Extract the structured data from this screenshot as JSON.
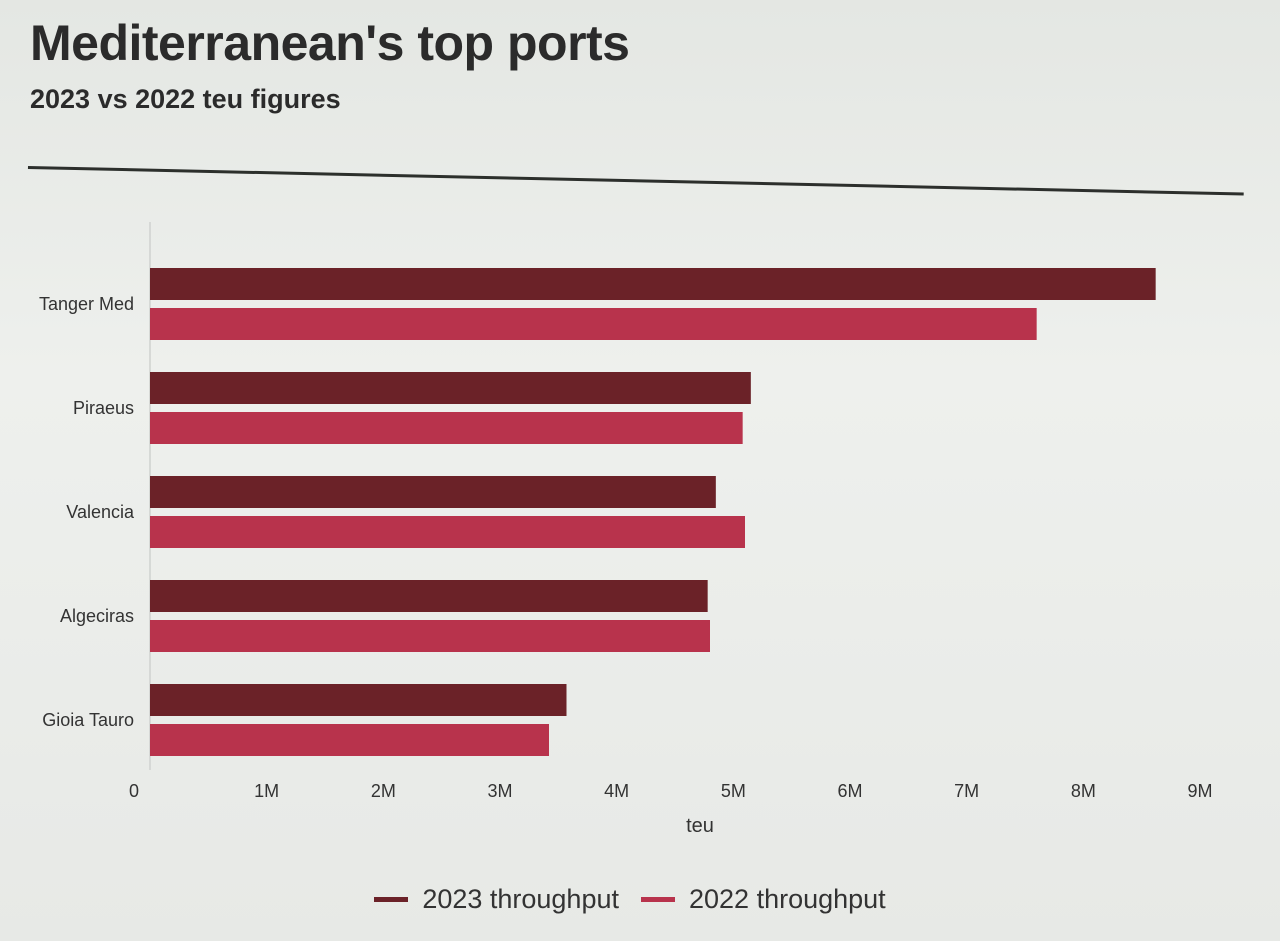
{
  "header": {
    "title": "Mediterranean's top ports",
    "subtitle": "2023 vs 2022 teu figures"
  },
  "colors": {
    "series_2023": "#6b2228",
    "series_2022": "#b8334c",
    "axis": "#cfd2cf",
    "text": "#333333"
  },
  "legend": {
    "placement": "bottom-center",
    "items": [
      {
        "label": "2023 throughput",
        "color": "#6b2228"
      },
      {
        "label": "2022 throughput",
        "color": "#b8334c"
      }
    ]
  },
  "chart_data": {
    "type": "bar",
    "orientation": "horizontal",
    "title": "Mediterranean's top ports",
    "subtitle": "2023 vs 2022 teu figures",
    "categories": [
      "Tanger Med",
      "Piraeus",
      "Valencia",
      "Algeciras",
      "Gioia Tauro"
    ],
    "series": [
      {
        "name": "2023 throughput",
        "values": [
          8.62,
          5.15,
          4.85,
          4.78,
          3.57
        ]
      },
      {
        "name": "2022 throughput",
        "values": [
          7.6,
          5.08,
          5.1,
          4.8,
          3.42
        ]
      }
    ],
    "xlabel": "teu",
    "ylabel": "",
    "xlim": [
      0,
      9
    ],
    "ticks": [
      "0",
      "1M",
      "2M",
      "3M",
      "4M",
      "5M",
      "6M",
      "7M",
      "8M",
      "9M"
    ],
    "grid": false,
    "legend_placement": "bottom"
  }
}
